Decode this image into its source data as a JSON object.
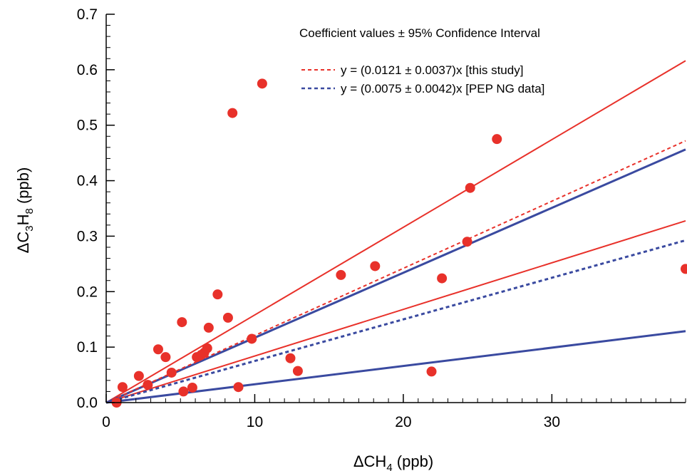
{
  "chart_data": {
    "type": "scatter",
    "title": "",
    "xlabel": {
      "prefix": "ΔCH",
      "sub": "4",
      "suffix": " (ppb)"
    },
    "ylabel": {
      "p1": "ΔC",
      "s1": "3",
      "p2": "H",
      "s2": "8",
      "p3": " (ppb)"
    },
    "xlim": [
      0,
      39
    ],
    "ylim": [
      0,
      0.7
    ],
    "x_ticks": [
      0,
      10,
      20,
      30
    ],
    "x_tick_labels": [
      "0",
      "10",
      "20",
      "30"
    ],
    "y_ticks": [
      0.0,
      0.1,
      0.2,
      0.3,
      0.4,
      0.5,
      0.6,
      0.7
    ],
    "y_tick_labels": [
      "0.0",
      "0.1",
      "0.2",
      "0.3",
      "0.4",
      "0.5",
      "0.6",
      "0.7"
    ],
    "grid": false,
    "legend_position": "top-right",
    "legend_title": "Coefficient values ± 95% Confidence Interval",
    "colors": {
      "red": "#e8312a",
      "blue": "#3a4aa0"
    },
    "points": {
      "x": [
        0.7,
        1.1,
        2.2,
        2.8,
        3.5,
        4.0,
        4.4,
        5.1,
        5.2,
        5.8,
        6.1,
        6.4,
        6.6,
        6.8,
        6.9,
        7.5,
        8.2,
        8.5,
        8.9,
        9.8,
        10.5,
        12.4,
        12.9,
        15.8,
        18.1,
        21.9,
        22.6,
        24.3,
        24.5,
        26.3,
        39.0
      ],
      "y": [
        0.0,
        0.028,
        0.048,
        0.032,
        0.096,
        0.082,
        0.054,
        0.145,
        0.02,
        0.027,
        0.082,
        0.086,
        0.09,
        0.098,
        0.135,
        0.195,
        0.153,
        0.522,
        0.028,
        0.115,
        0.575,
        0.08,
        0.057,
        0.23,
        0.246,
        0.056,
        0.224,
        0.29,
        0.387,
        0.475,
        0.241
      ]
    },
    "series": [
      {
        "name": "y = (0.0121 ± 0.0037)x [this study]",
        "slope": 0.0121,
        "ci": 0.0037,
        "color": "#e8312a"
      },
      {
        "name": "y = (0.0075 ± 0.0042)x [PEP NG data]",
        "slope": 0.0075,
        "ci": 0.0042,
        "color": "#3a4aa0"
      }
    ]
  }
}
